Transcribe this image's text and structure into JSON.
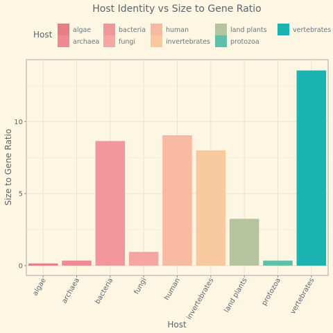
{
  "chart_data": {
    "type": "bar",
    "title": "Host Identity vs Size to Gene Ratio",
    "xlabel": "Host",
    "ylabel": "Size to Gene Ratio",
    "categories": [
      "algae",
      "archaea",
      "bacteria",
      "fungi",
      "human",
      "invertebrates",
      "land plants",
      "protozoa",
      "vertebrates"
    ],
    "values": [
      0.15,
      0.35,
      8.65,
      0.95,
      9.05,
      8.0,
      3.25,
      0.35,
      13.55
    ],
    "colors": [
      "#e87d86",
      "#ee8a92",
      "#f1979c",
      "#f5a6a2",
      "#f7b9a1",
      "#f8c99f",
      "#b5c49f",
      "#5fbfa8",
      "#1ab3b2"
    ],
    "yticks": [
      0,
      5,
      10
    ],
    "ylim": [
      -0.68,
      14.3
    ],
    "grid": true,
    "legend": {
      "title": "Host",
      "position": "top",
      "entries": [
        "algae",
        "archaea",
        "bacteria",
        "fungi",
        "human",
        "invertebrates",
        "land plants",
        "protozoa",
        "vertebrates"
      ]
    }
  }
}
